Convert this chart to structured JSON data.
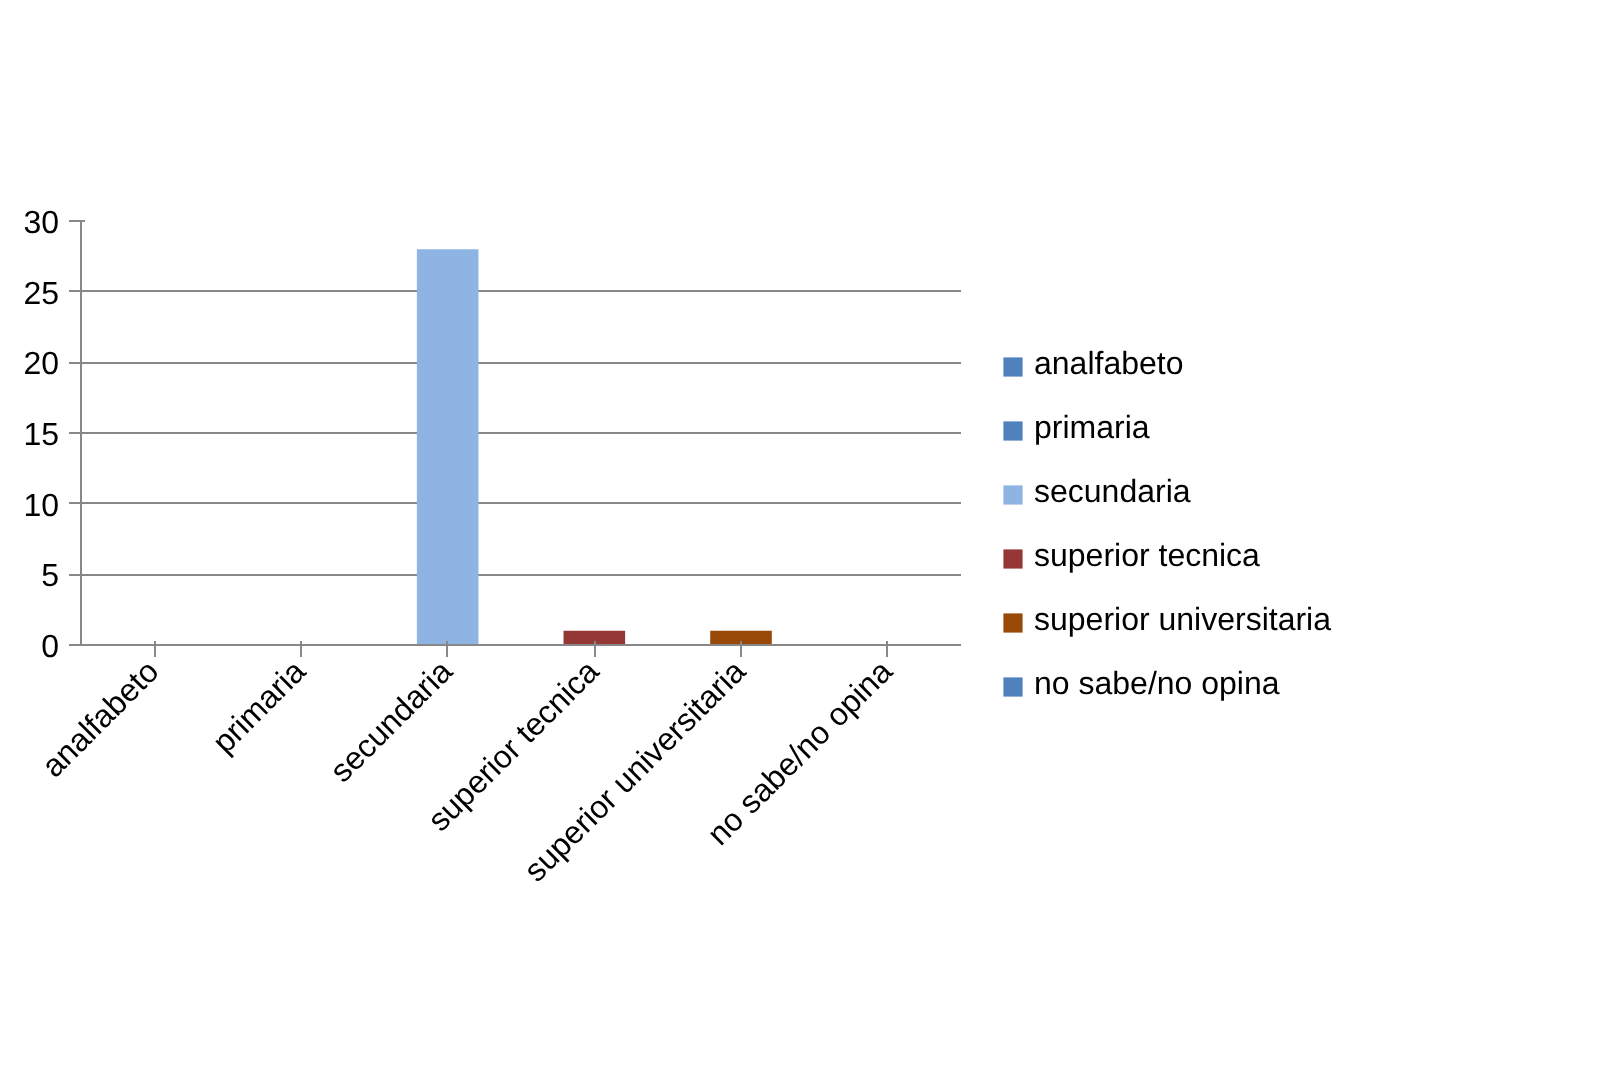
{
  "chart_data": {
    "type": "bar",
    "categories": [
      "analfabeto",
      "primaria",
      "secundaria",
      "superior tecnica",
      "superior universitaria",
      "no sabe/no opina"
    ],
    "series": [
      {
        "name": "analfabeto",
        "color": "#4f81bd",
        "values": [
          0,
          null,
          null,
          null,
          null,
          null
        ]
      },
      {
        "name": "primaria",
        "color": "#4f81bd",
        "values": [
          null,
          0,
          null,
          null,
          null,
          null
        ]
      },
      {
        "name": "secundaria",
        "color": "#8eb4e3",
        "values": [
          null,
          null,
          28,
          null,
          null,
          null
        ]
      },
      {
        "name": "superior tecnica",
        "color": "#953735",
        "values": [
          null,
          null,
          null,
          1,
          null,
          null
        ]
      },
      {
        "name": "superior universitaria",
        "color": "#984807",
        "values": [
          null,
          null,
          null,
          null,
          1,
          null
        ]
      },
      {
        "name": "no sabe/no opina",
        "color": "#4f81bd",
        "values": [
          null,
          null,
          null,
          null,
          null,
          0
        ]
      }
    ],
    "ylim": [
      0,
      30
    ],
    "yticks": [
      0,
      5,
      10,
      15,
      20,
      25,
      30
    ],
    "grid": "y",
    "legend": "right"
  }
}
